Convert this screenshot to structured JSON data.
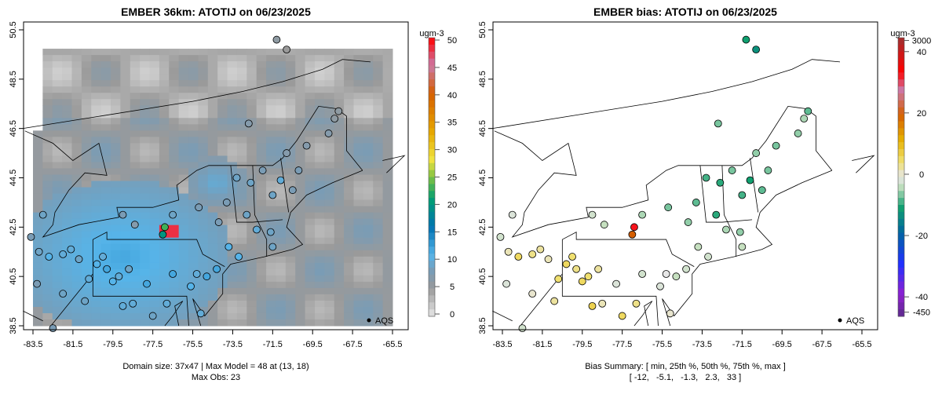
{
  "chart_data": [
    {
      "type": "heatmap",
      "title": "EMBER 36km: ATOTIJ on 06/23/2025",
      "x_ticks": [
        "-83.5",
        "-81.5",
        "-79.5",
        "-77.5",
        "-75.5",
        "-73.5",
        "-71.5",
        "-69.5",
        "-67.5",
        "-65.5"
      ],
      "y_ticks": [
        "38.5",
        "40.5",
        "42.5",
        "44.5",
        "46.5",
        "48.5",
        "50.5"
      ],
      "xlim": [
        -83.5,
        -65.5
      ],
      "ylim": [
        38.5,
        50.5
      ],
      "colorbar": {
        "unit": "ugm-3",
        "ticks": [
          "0",
          "5",
          "10",
          "15",
          "20",
          "25",
          "30",
          "35",
          "40",
          "45",
          "50"
        ],
        "range": [
          0,
          50
        ]
      },
      "legend": {
        "label": "AQS",
        "placement": "bottom-right"
      },
      "footer": [
        "Domain size: 37x47 | Max Model = 48 at (13, 18)",
        "Max Obs: 23"
      ],
      "domain_size": "37x47",
      "max_model": 48,
      "max_model_cell": [
        13,
        18
      ],
      "max_obs": 23
    },
    {
      "type": "heatmap",
      "title": "EMBER bias: ATOTIJ on 06/23/2025",
      "x_ticks": [
        "-83.5",
        "-81.5",
        "-79.5",
        "-77.5",
        "-75.5",
        "-73.5",
        "-71.5",
        "-69.5",
        "-67.5",
        "-65.5"
      ],
      "y_ticks": [
        "38.5",
        "40.5",
        "42.5",
        "44.5",
        "46.5",
        "48.5",
        "50.5"
      ],
      "xlim": [
        -83.5,
        -65.5
      ],
      "ylim": [
        38.5,
        50.5
      ],
      "colorbar": {
        "unit": "ugm-3",
        "ticks": [
          "3000",
          "40",
          "20",
          "0",
          "-20",
          "-40",
          "-450"
        ],
        "range": [
          -450,
          3000
        ]
      },
      "legend": {
        "label": "AQS",
        "placement": "bottom-right"
      },
      "footer": [
        "Bias Summary: [ min, 25th %, 50th %, 75th %, max ]",
        "[ -12,   -5.1,   -1.3,   2.3,   33 ]"
      ],
      "bias_summary": {
        "min": -12,
        "p25": -5.1,
        "p50": -1.3,
        "p75": 2.3,
        "max": 33
      }
    }
  ],
  "sites": [
    {
      "lon": -76.9,
      "lat": 42.5,
      "obs": 23,
      "bias": 33
    },
    {
      "lon": -77.0,
      "lat": 42.2,
      "obs": 20,
      "bias": 20
    },
    {
      "lon": -80.0,
      "lat": 41.3,
      "obs": 10,
      "bias": 5
    },
    {
      "lon": -80.3,
      "lat": 41.0,
      "obs": 11,
      "bias": 6
    },
    {
      "lon": -79.8,
      "lat": 40.8,
      "obs": 12,
      "bias": 4
    },
    {
      "lon": -79.2,
      "lat": 40.5,
      "obs": 10,
      "bias": 5
    },
    {
      "lon": -79.5,
      "lat": 40.3,
      "obs": 11,
      "bias": 6
    },
    {
      "lon": -78.7,
      "lat": 40.8,
      "obs": 9,
      "bias": 3
    },
    {
      "lon": -78.5,
      "lat": 39.4,
      "obs": 10,
      "bias": 2
    },
    {
      "lon": -77.8,
      "lat": 40.2,
      "obs": 12,
      "bias": -1
    },
    {
      "lon": -83.2,
      "lat": 41.5,
      "obs": 9,
      "bias": 2
    },
    {
      "lon": -82.7,
      "lat": 41.3,
      "obs": 11,
      "bias": 6
    },
    {
      "lon": -82.0,
      "lat": 41.4,
      "obs": 10,
      "bias": 4
    },
    {
      "lon": -81.6,
      "lat": 41.6,
      "obs": 10,
      "bias": 3
    },
    {
      "lon": -81.2,
      "lat": 41.2,
      "obs": 9,
      "bias": 2
    },
    {
      "lon": -83.3,
      "lat": 40.2,
      "obs": 8,
      "bias": -1
    },
    {
      "lon": -80.7,
      "lat": 40.4,
      "obs": 10,
      "bias": 5
    },
    {
      "lon": -83.6,
      "lat": 42.1,
      "obs": 8,
      "bias": -2
    },
    {
      "lon": -82.0,
      "lat": 39.8,
      "obs": 9,
      "bias": 1
    },
    {
      "lon": -80.9,
      "lat": 39.5,
      "obs": 9,
      "bias": 3
    },
    {
      "lon": -79.0,
      "lat": 39.3,
      "obs": 10,
      "bias": 7
    },
    {
      "lon": -77.5,
      "lat": 38.9,
      "obs": 9,
      "bias": 6
    },
    {
      "lon": -76.8,
      "lat": 39.4,
      "obs": 10,
      "bias": 4
    },
    {
      "lon": -76.5,
      "lat": 40.6,
      "obs": 12,
      "bias": -2
    },
    {
      "lon": -75.6,
      "lat": 40.1,
      "obs": 11,
      "bias": -1
    },
    {
      "lon": -75.3,
      "lat": 40.6,
      "obs": 10,
      "bias": 0
    },
    {
      "lon": -74.8,
      "lat": 40.5,
      "obs": 12,
      "bias": -3
    },
    {
      "lon": -74.3,
      "lat": 40.8,
      "obs": 12,
      "bias": -2
    },
    {
      "lon": -79.0,
      "lat": 43.0,
      "obs": 8,
      "bias": -2
    },
    {
      "lon": -78.4,
      "lat": 42.6,
      "obs": 7,
      "bias": -3
    },
    {
      "lon": -76.5,
      "lat": 43.0,
      "obs": 9,
      "bias": -4
    },
    {
      "lon": -75.2,
      "lat": 43.3,
      "obs": 8,
      "bias": -6
    },
    {
      "lon": -74.2,
      "lat": 42.7,
      "obs": 8,
      "bias": -5
    },
    {
      "lon": -73.8,
      "lat": 43.5,
      "obs": 8,
      "bias": -7
    },
    {
      "lon": -73.3,
      "lat": 44.5,
      "obs": 9,
      "bias": -8
    },
    {
      "lon": -72.6,
      "lat": 44.3,
      "obs": 9,
      "bias": -9
    },
    {
      "lon": -72.0,
      "lat": 44.8,
      "obs": 8,
      "bias": -6
    },
    {
      "lon": -71.5,
      "lat": 43.8,
      "obs": 9,
      "bias": -8
    },
    {
      "lon": -71.1,
      "lat": 44.4,
      "obs": 10,
      "bias": -10
    },
    {
      "lon": -70.5,
      "lat": 44.0,
      "obs": 8,
      "bias": -7
    },
    {
      "lon": -70.2,
      "lat": 44.8,
      "obs": 8,
      "bias": -6
    },
    {
      "lon": -70.8,
      "lat": 45.5,
      "obs": 7,
      "bias": -5
    },
    {
      "lon": -69.8,
      "lat": 45.8,
      "obs": 7,
      "bias": -6
    },
    {
      "lon": -68.7,
      "lat": 46.3,
      "obs": 7,
      "bias": -5
    },
    {
      "lon": -68.2,
      "lat": 47.2,
      "obs": 6,
      "bias": -7
    },
    {
      "lon": -68.4,
      "lat": 46.9,
      "obs": 6,
      "bias": -4
    },
    {
      "lon": -72.7,
      "lat": 46.7,
      "obs": 7,
      "bias": -6
    },
    {
      "lon": -71.3,
      "lat": 50.1,
      "obs": 6,
      "bias": -10
    },
    {
      "lon": -70.8,
      "lat": 49.7,
      "obs": 5,
      "bias": -12
    },
    {
      "lon": -72.8,
      "lat": 43.0,
      "obs": 9,
      "bias": -9
    },
    {
      "lon": -72.3,
      "lat": 42.4,
      "obs": 10,
      "bias": -4
    },
    {
      "lon": -71.6,
      "lat": 42.3,
      "obs": 9,
      "bias": -5
    },
    {
      "lon": -73.7,
      "lat": 41.7,
      "obs": 11,
      "bias": -3
    },
    {
      "lon": -73.2,
      "lat": 41.3,
      "obs": 11,
      "bias": -2
    },
    {
      "lon": -71.5,
      "lat": 41.7,
      "obs": 9,
      "bias": -3
    },
    {
      "lon": -83.0,
      "lat": 43.0,
      "obs": 9,
      "bias": -1
    },
    {
      "lon": -82.5,
      "lat": 38.4,
      "obs": 8,
      "bias": -2
    },
    {
      "lon": -75.1,
      "lat": 39.0,
      "obs": 10,
      "bias": 1
    }
  ],
  "colors": {
    "frame": "#000000",
    "ocean": "#ffffff"
  }
}
